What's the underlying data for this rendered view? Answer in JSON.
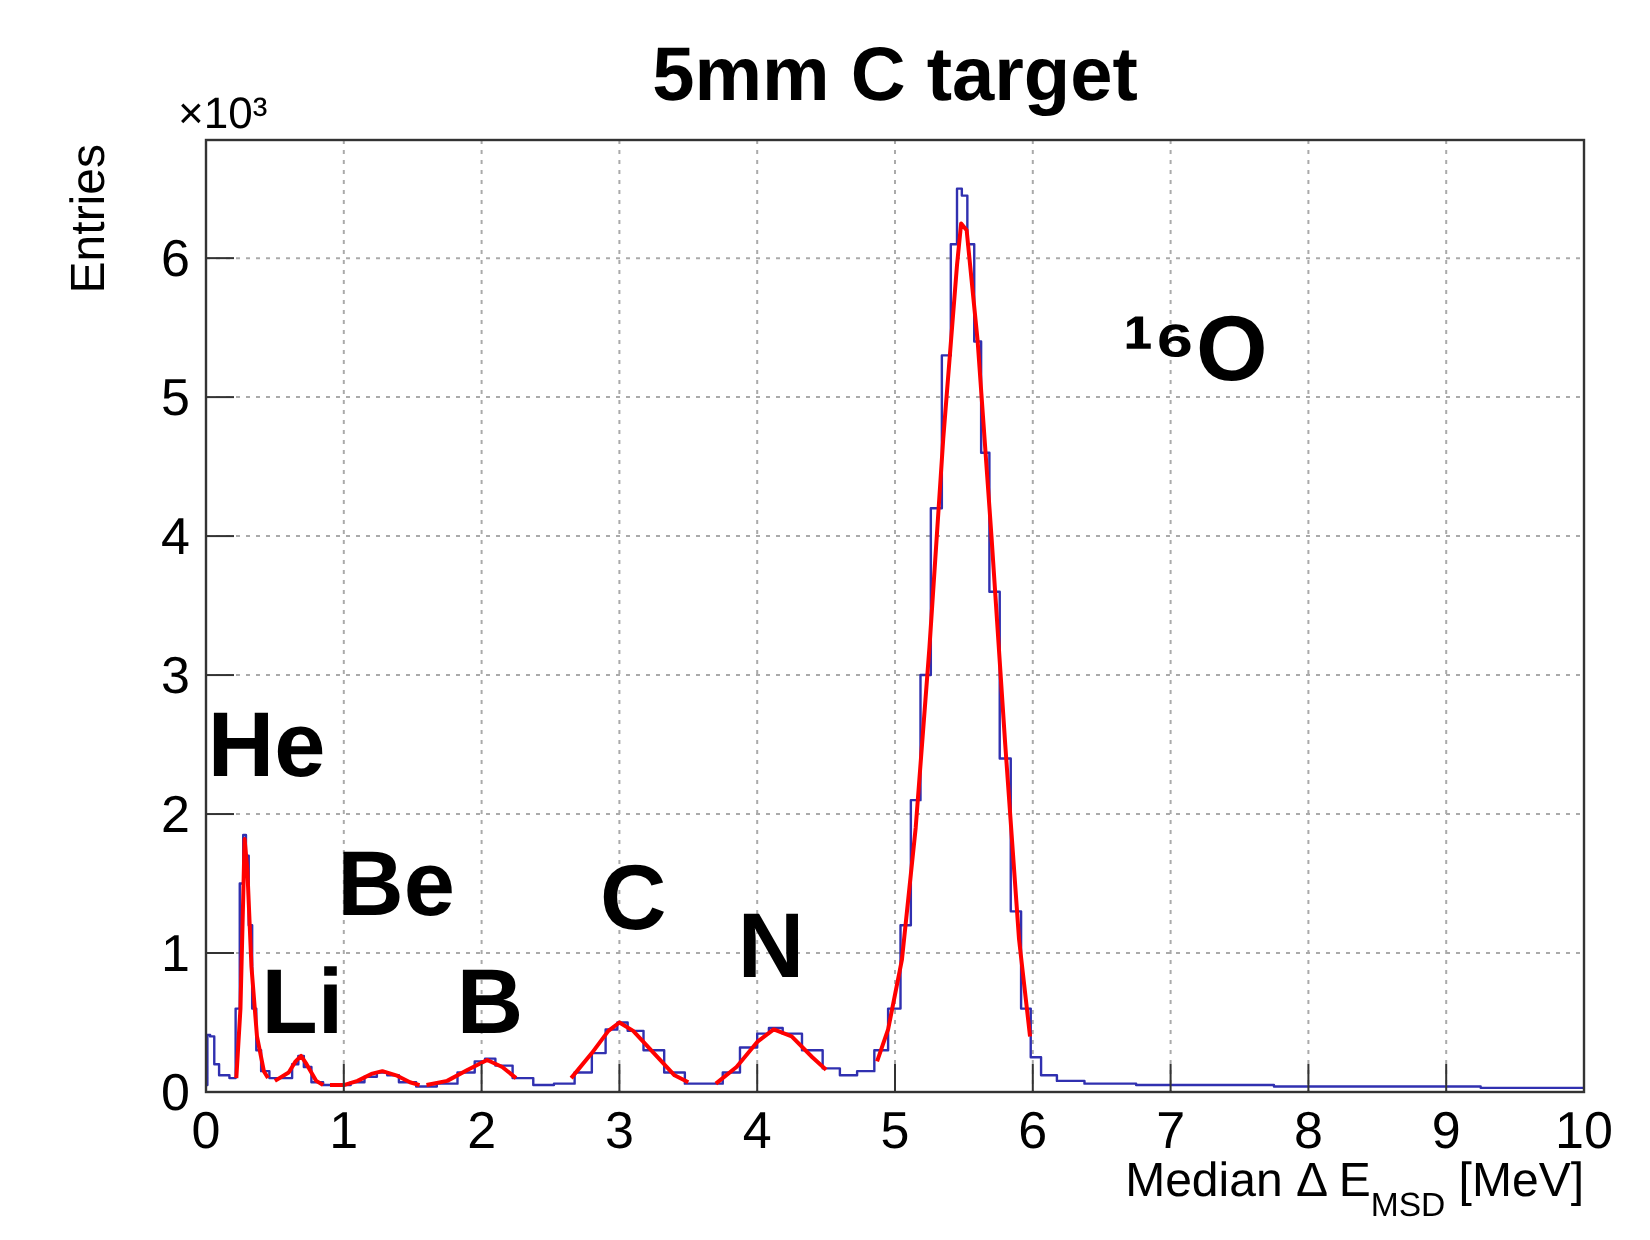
{
  "chart_data": {
    "type": "step",
    "title": "5mm C target",
    "xlabel": "Median Δ E$_{MSD}$ [MeV]",
    "ylabel": "Entries",
    "xlim": [
      0,
      10
    ],
    "xticks": [
      0,
      1,
      2,
      3,
      4,
      5,
      6,
      7,
      8,
      9,
      10
    ],
    "ylim": [
      0,
      6.85
    ],
    "yticks": [
      0,
      1,
      2,
      3,
      4,
      5,
      6
    ],
    "grid": true,
    "series": [
      {
        "type": "step",
        "color": "#3030b0",
        "x": [
          0,
          0.02,
          0.04,
          0.08,
          0.11,
          0.14,
          0.2,
          0.23,
          0.26,
          0.28,
          0.3,
          0.32,
          0.35,
          0.38,
          0.42,
          0.5,
          0.6,
          0.65,
          0.69,
          0.73,
          0.8,
          0.9,
          1.0,
          1.1,
          1.2,
          1.28,
          1.35,
          1.45,
          1.6,
          1.75,
          1.9,
          2.0,
          2.05,
          2.15,
          2.3,
          2.45,
          2.6,
          2.75,
          2.85,
          2.95,
          3.02,
          3.1,
          3.25,
          3.4,
          3.55,
          3.7,
          3.8,
          3.95,
          4.05,
          4.12,
          4.25,
          4.4,
          4.55,
          4.65,
          4.8,
          4.9,
          5.0,
          5.08,
          5.15,
          5.22,
          5.3,
          5.38,
          5.43,
          5.47,
          5.5,
          5.55,
          5.6,
          5.65,
          5.72,
          5.8,
          5.88,
          5.95,
          6.02,
          6.1,
          6.25,
          6.5,
          7.0,
          7.5,
          8.0,
          8.5,
          9.0,
          9.5,
          10.0
        ],
        "values": [
          0.05,
          0.41,
          0.4,
          0.2,
          0.12,
          0.12,
          0.1,
          0.6,
          1.5,
          1.85,
          1.7,
          1.2,
          0.6,
          0.3,
          0.15,
          0.1,
          0.1,
          0.2,
          0.26,
          0.18,
          0.07,
          0.05,
          0.05,
          0.07,
          0.11,
          0.14,
          0.12,
          0.07,
          0.04,
          0.06,
          0.14,
          0.22,
          0.24,
          0.19,
          0.1,
          0.05,
          0.06,
          0.14,
          0.28,
          0.45,
          0.5,
          0.44,
          0.3,
          0.14,
          0.06,
          0.06,
          0.14,
          0.32,
          0.42,
          0.46,
          0.42,
          0.3,
          0.17,
          0.12,
          0.15,
          0.3,
          0.6,
          1.2,
          2.1,
          3.0,
          4.2,
          5.3,
          6.1,
          6.5,
          6.45,
          6.1,
          5.4,
          4.6,
          3.6,
          2.4,
          1.3,
          0.6,
          0.25,
          0.12,
          0.08,
          0.06,
          0.05,
          0.05,
          0.04,
          0.04,
          0.04,
          0.03,
          0.03
        ]
      },
      {
        "type": "line",
        "color": "#ff0000",
        "x": [
          0.22,
          0.25,
          0.27,
          0.28,
          0.3,
          0.33,
          0.37,
          0.42,
          0.45,
          null,
          0.5,
          0.6,
          0.65,
          0.69,
          0.73,
          0.8,
          0.85,
          null,
          0.9,
          1.0,
          1.1,
          1.2,
          1.28,
          1.38,
          1.48,
          1.55,
          null,
          1.6,
          1.75,
          1.9,
          2.04,
          2.15,
          2.25,
          null,
          2.65,
          2.8,
          2.92,
          3.0,
          3.1,
          3.25,
          3.4,
          3.5,
          null,
          3.7,
          3.85,
          4.0,
          4.12,
          4.25,
          4.4,
          4.5,
          null,
          4.87,
          4.95,
          5.05,
          5.15,
          5.25,
          5.35,
          5.45,
          5.48,
          5.52,
          5.6,
          5.7,
          5.8,
          5.9,
          5.98
        ],
        "values": [
          0.1,
          0.6,
          1.4,
          1.82,
          1.6,
          0.9,
          0.4,
          0.15,
          0.1,
          null,
          0.08,
          0.14,
          0.22,
          0.26,
          0.2,
          0.08,
          0.05,
          null,
          0.05,
          0.05,
          0.08,
          0.13,
          0.15,
          0.12,
          0.07,
          0.05,
          null,
          0.05,
          0.08,
          0.16,
          0.23,
          0.18,
          0.1,
          null,
          0.1,
          0.28,
          0.44,
          0.5,
          0.44,
          0.28,
          0.12,
          0.07,
          null,
          0.06,
          0.18,
          0.36,
          0.45,
          0.4,
          0.25,
          0.16,
          null,
          0.22,
          0.45,
          0.95,
          1.9,
          3.2,
          4.7,
          5.95,
          6.25,
          6.2,
          5.4,
          4.0,
          2.5,
          1.1,
          0.4
        ]
      }
    ],
    "annotations": [
      "×10³",
      "He",
      "Li",
      "Be",
      "B",
      "C",
      "N",
      "¹⁶O"
    ]
  }
}
